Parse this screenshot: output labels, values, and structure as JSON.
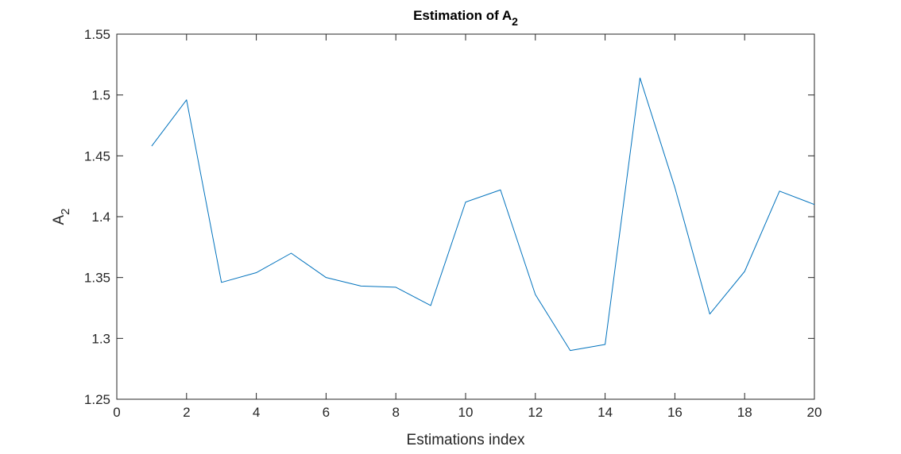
{
  "chart_data": {
    "type": "line",
    "title": "Estimation of A",
    "title_subscript": "2",
    "xlabel": "Estimations index",
    "ylabel": "A",
    "ylabel_subscript": "2",
    "xlim": [
      0,
      20
    ],
    "ylim": [
      1.25,
      1.55
    ],
    "xticks": [
      0,
      2,
      4,
      6,
      8,
      10,
      12,
      14,
      16,
      18,
      20
    ],
    "yticks": [
      "1.25",
      "1.3",
      "1.35",
      "1.4",
      "1.45",
      "1.5",
      "1.55"
    ],
    "grid": false,
    "line_color": "#0072BD",
    "series": [
      {
        "x": [
          1,
          2,
          3,
          4,
          5,
          6,
          7,
          8,
          9,
          10,
          11,
          12,
          13,
          14,
          15,
          16,
          17,
          18,
          19,
          20
        ],
        "values": [
          1.458,
          1.496,
          1.346,
          1.354,
          1.37,
          1.35,
          1.343,
          1.342,
          1.327,
          1.412,
          1.422,
          1.336,
          1.29,
          1.295,
          1.514,
          1.424,
          1.32,
          1.355,
          1.421,
          1.41
        ]
      }
    ]
  }
}
